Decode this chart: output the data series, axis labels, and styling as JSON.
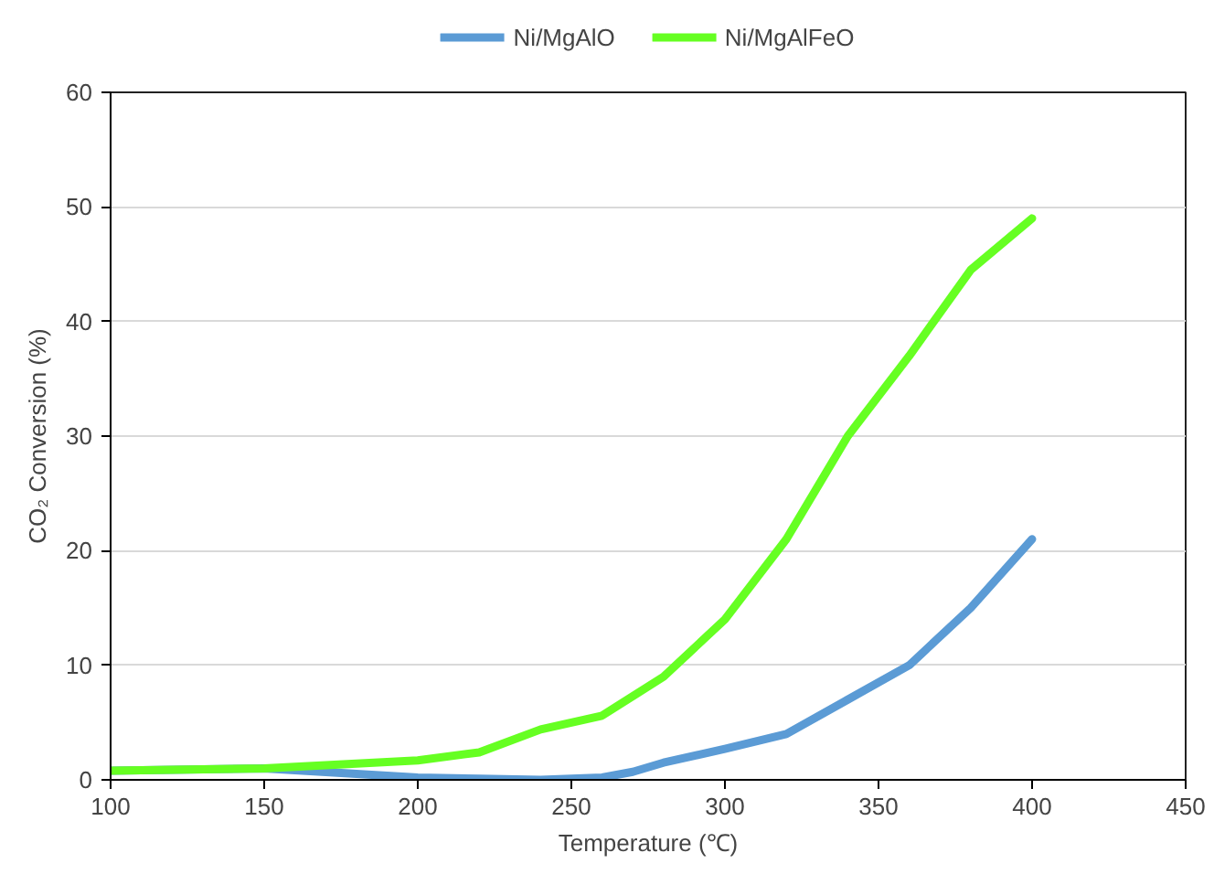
{
  "chart_data": {
    "type": "line",
    "xlabel": "Temperature (℃)",
    "ylabel": "CO₂ Conversion (%)",
    "xlim": [
      100,
      450
    ],
    "ylim": [
      0,
      60
    ],
    "xticks": [
      100,
      150,
      200,
      250,
      300,
      350,
      400,
      450
    ],
    "yticks": [
      0,
      10,
      20,
      30,
      40,
      50,
      60
    ],
    "grid": "y",
    "legend": "top",
    "marker": "none",
    "line_style": "solid",
    "series": [
      {
        "name": "Ni/MgAlO",
        "color": "#5b9bd5",
        "x": [
          100,
          150,
          200,
          220,
          240,
          260,
          270,
          280,
          300,
          320,
          340,
          360,
          380,
          400
        ],
        "values": [
          0.8,
          1.0,
          0.2,
          0.1,
          0,
          0.2,
          0.7,
          1.5,
          2.7,
          4,
          7,
          10,
          15,
          21
        ]
      },
      {
        "name": "Ni/MgAlFeO",
        "color": "#66ff22",
        "x": [
          100,
          150,
          200,
          220,
          240,
          260,
          280,
          300,
          320,
          340,
          360,
          380,
          400
        ],
        "values": [
          0.8,
          1.0,
          1.7,
          2.4,
          4.4,
          5.6,
          9,
          14,
          21,
          30,
          37,
          44.5,
          49
        ]
      }
    ]
  }
}
